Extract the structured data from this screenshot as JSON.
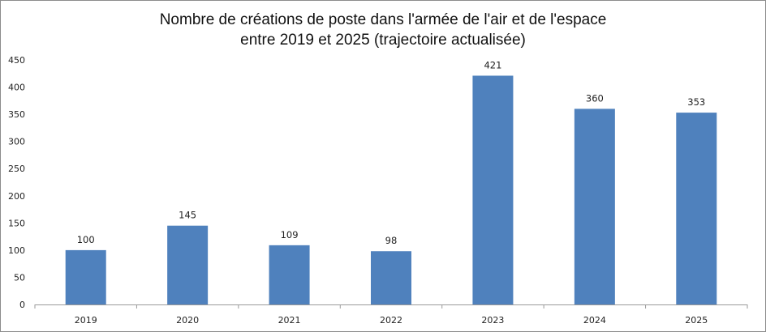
{
  "chart_data": {
    "type": "bar",
    "title_lines": [
      "Nombre de créations de poste dans l'armée de l'air et de l'espace",
      "entre 2019 et 2025 (trajectoire actualisée)"
    ],
    "categories": [
      "2019",
      "2020",
      "2021",
      "2022",
      "2023",
      "2024",
      "2025"
    ],
    "values": [
      100,
      145,
      109,
      98,
      421,
      360,
      353
    ],
    "ylim": [
      0,
      450
    ],
    "yticks": [
      0,
      50,
      100,
      150,
      200,
      250,
      300,
      350,
      400,
      450
    ],
    "grid": false,
    "legend": "none",
    "bar_color": "#4f81bd"
  }
}
